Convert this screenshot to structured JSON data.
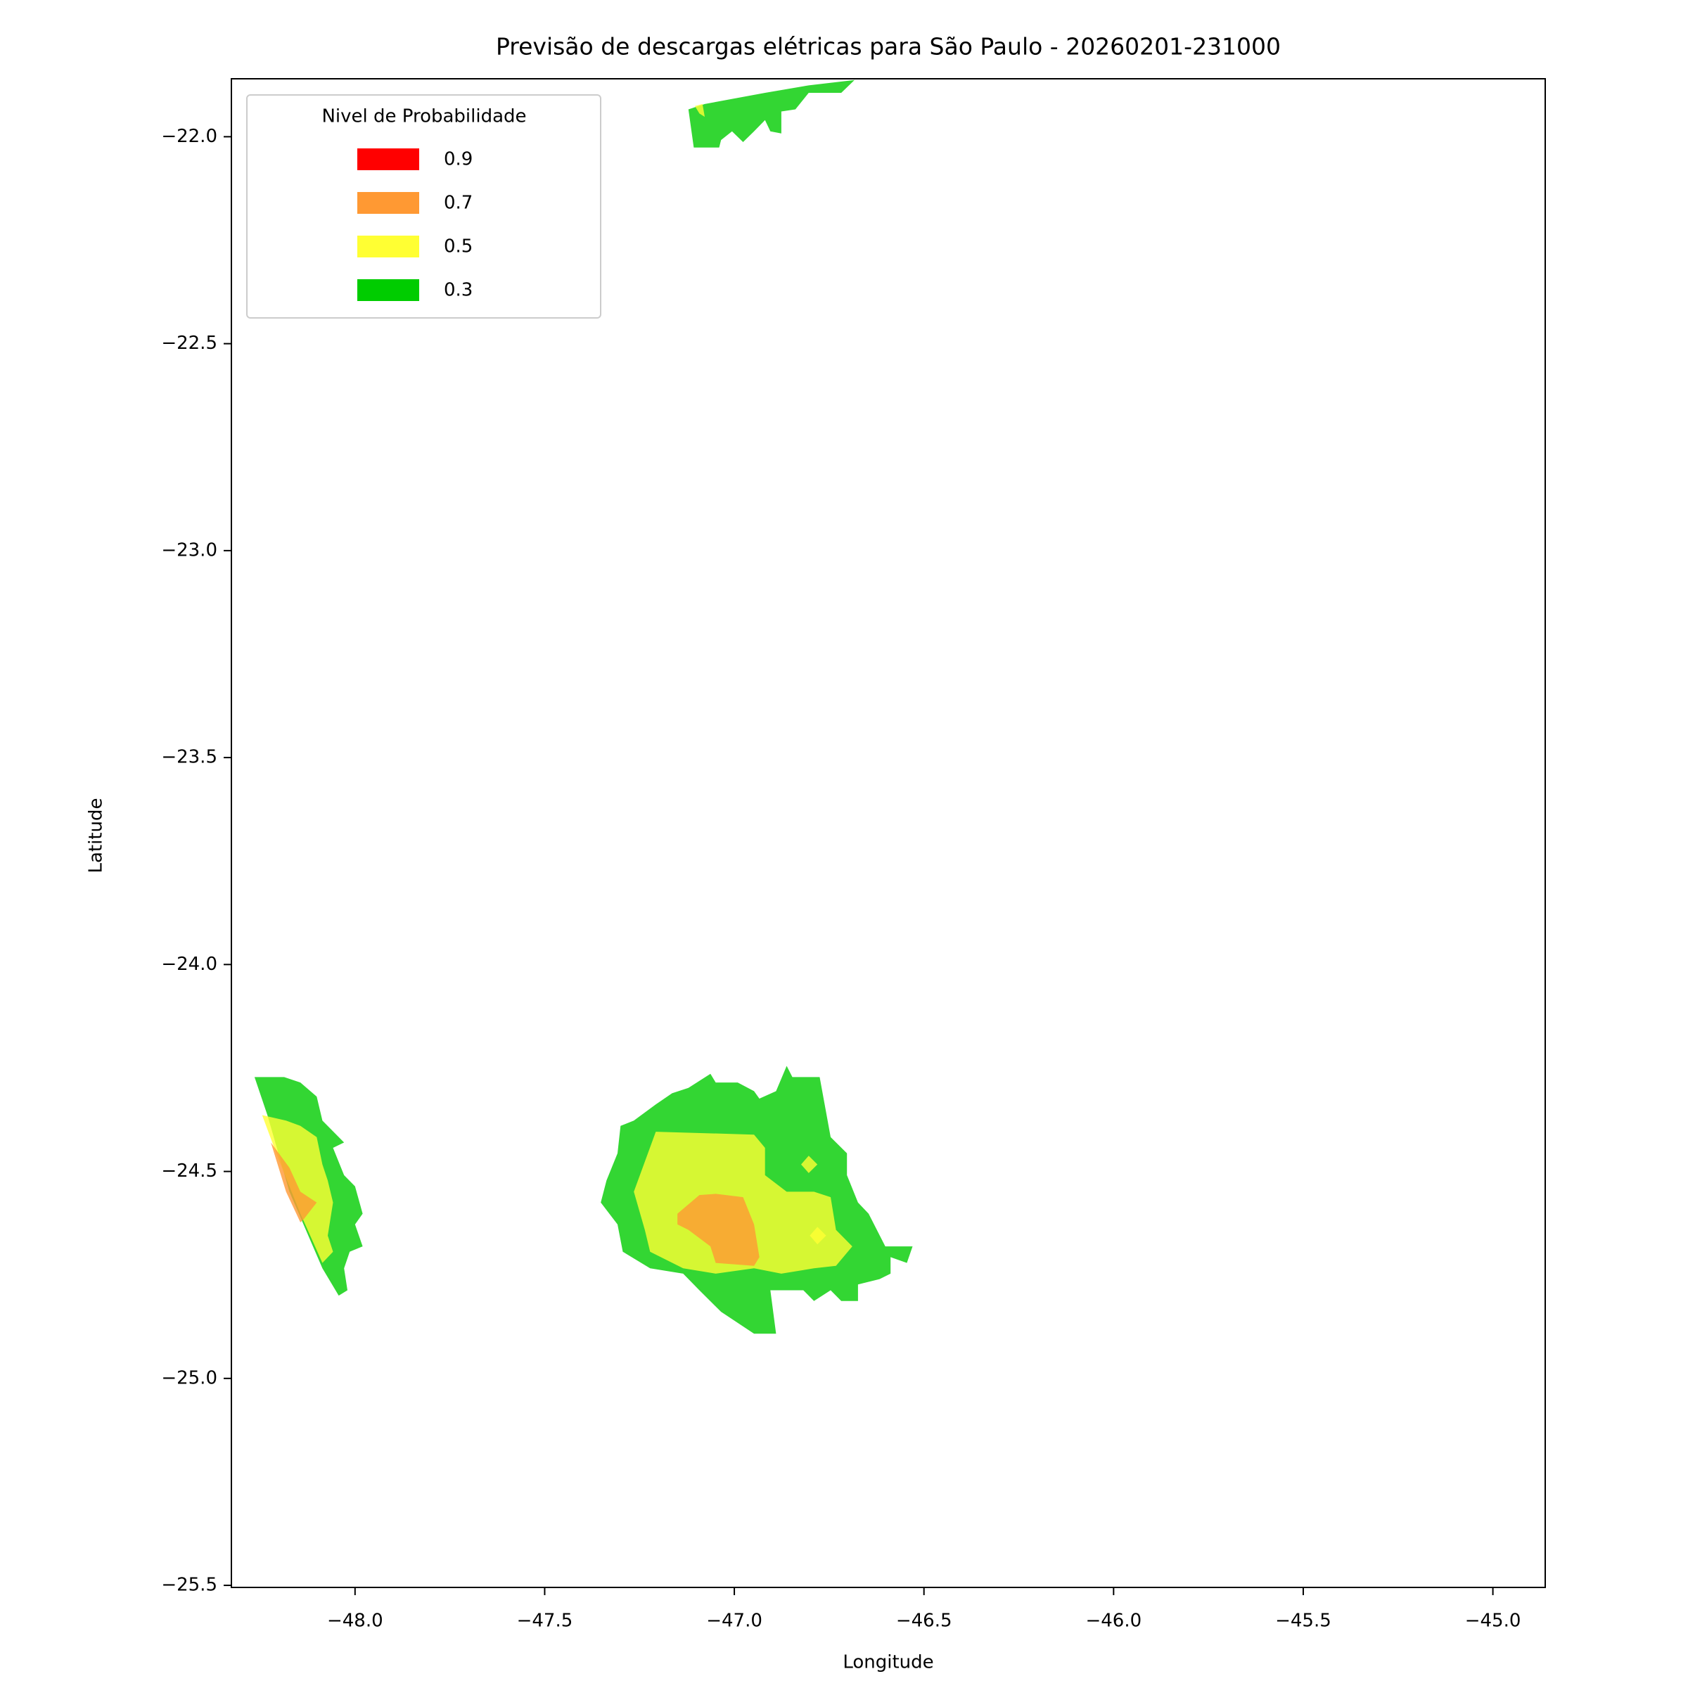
{
  "chart_data": {
    "type": "contour",
    "title": "Previsão de descargas elétricas para São Paulo - 20260201-231000",
    "x_label": "Longitude",
    "y_label": "Latitude",
    "legend_title": "Nivel de Probabilidade",
    "legend_position": "upper left",
    "alpha": 0.8,
    "xlim": [
      -48.326,
      -44.862
    ],
    "ylim": [
      -25.505,
      -21.86
    ],
    "xticks": [
      {
        "value": -48.0,
        "label": "−48.0"
      },
      {
        "value": -47.5,
        "label": "−47.5"
      },
      {
        "value": -47.0,
        "label": "−47.0"
      },
      {
        "value": -46.5,
        "label": "−46.5"
      },
      {
        "value": -46.0,
        "label": "−46.0"
      },
      {
        "value": -45.5,
        "label": "−45.5"
      },
      {
        "value": -45.0,
        "label": "−45.0"
      }
    ],
    "yticks": [
      {
        "value": -22.0,
        "label": "−22.0"
      },
      {
        "value": -22.5,
        "label": "−22.5"
      },
      {
        "value": -23.0,
        "label": "−23.0"
      },
      {
        "value": -23.5,
        "label": "−23.5"
      },
      {
        "value": -24.0,
        "label": "−24.0"
      },
      {
        "value": -24.5,
        "label": "−24.5"
      },
      {
        "value": -25.0,
        "label": "−25.0"
      },
      {
        "value": -25.5,
        "label": "−25.5"
      }
    ],
    "series": [
      {
        "name": "0.9",
        "color": "#ff0000",
        "regions": []
      },
      {
        "name": "0.7",
        "color": "#ff9933",
        "regions": [
          {
            "x": [
              -48.222,
              -48.173,
              -48.144,
              -48.101,
              -48.135,
              -48.144,
              -48.182
            ],
            "y": [
              -24.43,
              -24.491,
              -24.549,
              -24.575,
              -24.615,
              -24.623,
              -24.549
            ]
          },
          {
            "x": [
              -47.15,
              -47.092,
              -47.049,
              -46.977,
              -46.948,
              -46.934,
              -46.948,
              -47.049,
              -47.063,
              -47.121,
              -47.15
            ],
            "y": [
              -24.602,
              -24.557,
              -24.554,
              -24.562,
              -24.628,
              -24.707,
              -24.728,
              -24.721,
              -24.681,
              -24.641,
              -24.628
            ]
          }
        ]
      },
      {
        "name": "0.5",
        "color": "#ffff33",
        "regions": [
          {
            "x": [
              -47.104,
              -47.084,
              -47.078,
              -47.092
            ],
            "y": [
              -21.926,
              -21.921,
              -21.952,
              -21.944
            ]
          },
          {
            "x": [
              -48.245,
              -48.182,
              -48.144,
              -48.101,
              -48.086,
              -48.072,
              -48.058,
              -48.072,
              -48.058,
              -48.086,
              -48.144,
              -48.202
            ],
            "y": [
              -24.364,
              -24.377,
              -24.39,
              -24.417,
              -24.483,
              -24.522,
              -24.575,
              -24.655,
              -24.694,
              -24.721,
              -24.602,
              -24.47
            ]
          },
          {
            "x": [
              -47.207,
              -46.948,
              -46.919,
              -46.919,
              -46.862,
              -46.79,
              -46.746,
              -46.732,
              -46.689,
              -46.732,
              -46.79,
              -46.876,
              -46.948,
              -47.049,
              -47.135,
              -47.222,
              -47.236,
              -47.265
            ],
            "y": [
              -24.404,
              -24.411,
              -24.443,
              -24.509,
              -24.549,
              -24.549,
              -24.562,
              -24.641,
              -24.681,
              -24.728,
              -24.734,
              -24.747,
              -24.734,
              -24.747,
              -24.734,
              -24.694,
              -24.641,
              -24.549
            ]
          },
          {
            "x": [
              -46.824,
              -46.804,
              -46.781,
              -46.804
            ],
            "y": [
              -24.483,
              -24.462,
              -24.483,
              -24.504
            ]
          },
          {
            "x": [
              -46.801,
              -46.781,
              -46.758,
              -46.781
            ],
            "y": [
              -24.655,
              -24.634,
              -24.655,
              -24.676
            ]
          }
        ]
      },
      {
        "name": "0.3",
        "color": "#00cc00",
        "regions": [
          {
            "x": [
              -47.121,
              -47.078,
              -46.919,
              -46.804,
              -46.683,
              -46.718,
              -46.804,
              -46.839,
              -46.876,
              -46.876,
              -46.905,
              -46.919,
              -46.948,
              -46.977,
              -47.006,
              -47.035,
              -47.04,
              -47.107
            ],
            "y": [
              -21.934,
              -21.921,
              -21.894,
              -21.876,
              -21.863,
              -21.894,
              -21.894,
              -21.934,
              -21.939,
              -21.992,
              -21.987,
              -21.96,
              -21.987,
              -22.013,
              -21.987,
              -22.008,
              -22.026,
              -22.026
            ]
          },
          {
            "x": [
              -48.265,
              -48.187,
              -48.144,
              -48.101,
              -48.086,
              -48.029,
              -48.058,
              -48.029,
              -48.0,
              -47.98,
              -48.0,
              -47.98,
              -48.014,
              -48.029,
              -48.02,
              -48.043,
              -48.086,
              -48.173,
              -48.231
            ],
            "y": [
              -24.272,
              -24.272,
              -24.285,
              -24.319,
              -24.377,
              -24.43,
              -24.443,
              -24.509,
              -24.536,
              -24.602,
              -24.628,
              -24.681,
              -24.694,
              -24.734,
              -24.787,
              -24.8,
              -24.734,
              -24.549,
              -24.364
            ]
          },
          {
            "x": [
              -47.3,
              -47.265,
              -47.207,
              -47.164,
              -47.121,
              -47.063,
              -47.049,
              -46.991,
              -46.948,
              -46.934,
              -46.89,
              -46.862,
              -46.847,
              -46.775,
              -46.746,
              -46.703,
              -46.703,
              -46.674,
              -46.646,
              -46.602,
              -46.53,
              -46.545,
              -46.588,
              -46.588,
              -46.617,
              -46.674,
              -46.674,
              -46.718,
              -46.746,
              -46.79,
              -46.818,
              -46.905,
              -46.89,
              -46.948,
              -47.035,
              -47.092,
              -47.135,
              -47.222,
              -47.294,
              -47.308,
              -47.352,
              -47.337,
              -47.308
            ],
            "y": [
              -24.39,
              -24.377,
              -24.338,
              -24.311,
              -24.298,
              -24.264,
              -24.285,
              -24.285,
              -24.306,
              -24.324,
              -24.306,
              -24.245,
              -24.272,
              -24.272,
              -24.417,
              -24.456,
              -24.509,
              -24.575,
              -24.602,
              -24.681,
              -24.681,
              -24.721,
              -24.707,
              -24.747,
              -24.76,
              -24.773,
              -24.813,
              -24.813,
              -24.787,
              -24.813,
              -24.787,
              -24.787,
              -24.892,
              -24.892,
              -24.839,
              -24.787,
              -24.747,
              -24.734,
              -24.694,
              -24.628,
              -24.575,
              -24.522,
              -24.456
            ]
          }
        ]
      }
    ]
  }
}
